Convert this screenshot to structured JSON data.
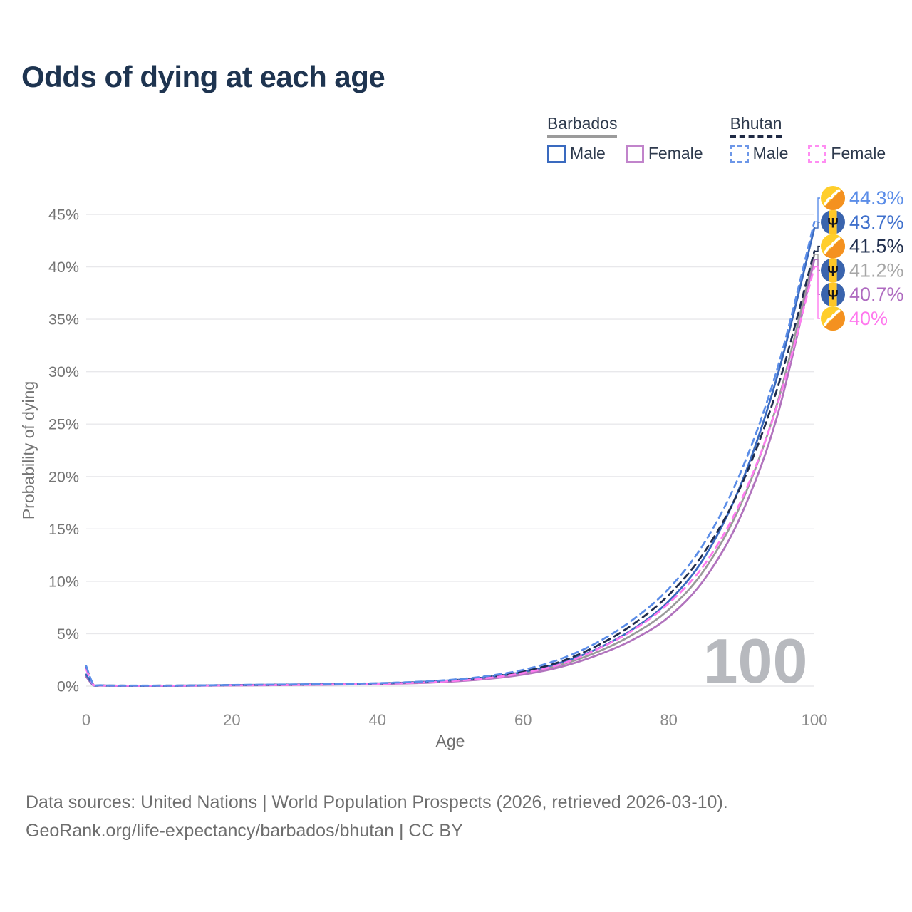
{
  "title": "Odds of dying at each age",
  "legend": {
    "groups": [
      {
        "label": "Barbados",
        "dashed": false,
        "underline_color": "#9B9B9B",
        "items": [
          {
            "label": "Male",
            "color": "#3A6ABF",
            "dashed": false
          },
          {
            "label": "Female",
            "color": "#C184CB",
            "dashed": false
          }
        ]
      },
      {
        "label": "Bhutan",
        "dashed": true,
        "underline_color": "#1F2A44",
        "items": [
          {
            "label": "Male",
            "color": "#6D97E8",
            "dashed": true
          },
          {
            "label": "Female",
            "color": "#FF8DF2",
            "dashed": true
          }
        ]
      }
    ]
  },
  "footer": {
    "line1": "Data sources: United Nations | World Population Prospects (2026, retrieved 2026-03-10).",
    "line2": "GeoRank.org/life-expectancy/barbados/bhutan | CC BY"
  },
  "chart_data": {
    "type": "line",
    "title": "Odds of dying at each age",
    "xlabel": "Age",
    "ylabel": "Probability of dying",
    "xlim": [
      0,
      100
    ],
    "ylim": [
      0,
      47
    ],
    "grid": true,
    "legend_position": "top-right",
    "x_ticks": [
      0,
      20,
      40,
      60,
      80,
      100
    ],
    "y_ticks_percent": [
      0,
      5,
      10,
      15,
      20,
      25,
      30,
      35,
      40,
      45
    ],
    "age_counter": "100",
    "x": [
      0,
      1,
      2,
      5,
      10,
      15,
      20,
      25,
      30,
      35,
      40,
      45,
      50,
      55,
      60,
      65,
      70,
      75,
      80,
      85,
      90,
      95,
      100
    ],
    "series": [
      {
        "name": "Bhutan Male",
        "country": "Bhutan",
        "sex": "Male",
        "color": "#5B8DE8",
        "label_color": "#5B8DE8",
        "dashed": true,
        "flag": "bhutan",
        "end_label": "44.3%",
        "end_value": 44.3,
        "values": [
          1.9,
          0.15,
          0.08,
          0.05,
          0.05,
          0.07,
          0.11,
          0.14,
          0.17,
          0.21,
          0.28,
          0.4,
          0.6,
          0.95,
          1.55,
          2.55,
          4.1,
          6.3,
          9.3,
          13.8,
          20.6,
          30.5,
          44.3
        ]
      },
      {
        "name": "Barbados Male",
        "country": "Barbados",
        "sex": "Male",
        "color": "#3A6ABF",
        "label_color": "#3F70CC",
        "dashed": false,
        "flag": "barbados",
        "end_label": "43.7%",
        "end_value": 43.7,
        "values": [
          1.1,
          0.09,
          0.06,
          0.04,
          0.04,
          0.06,
          0.1,
          0.13,
          0.16,
          0.2,
          0.26,
          0.37,
          0.55,
          0.85,
          1.35,
          2.2,
          3.5,
          5.4,
          8.1,
          12.4,
          19.4,
          29.8,
          43.7
        ]
      },
      {
        "name": "Bhutan",
        "country": "Bhutan",
        "sex": "Both",
        "color": "#1F2D4E",
        "label_color": "#22304F",
        "dashed": true,
        "flag": "bhutan",
        "end_label": "41.5%",
        "end_value": 41.5,
        "values": [
          1.75,
          0.13,
          0.07,
          0.045,
          0.045,
          0.06,
          0.095,
          0.12,
          0.15,
          0.19,
          0.25,
          0.36,
          0.54,
          0.85,
          1.4,
          2.3,
          3.8,
          5.85,
          8.7,
          12.9,
          19.2,
          28.6,
          41.5
        ]
      },
      {
        "name": "Barbados",
        "country": "Barbados",
        "sex": "Both",
        "color": "#9A9A9A",
        "label_color": "#A6A6A6",
        "dashed": false,
        "flag": "barbados",
        "end_label": "41.2%",
        "end_value": 41.2,
        "values": [
          1.0,
          0.08,
          0.05,
          0.035,
          0.035,
          0.05,
          0.085,
          0.11,
          0.14,
          0.18,
          0.23,
          0.33,
          0.5,
          0.78,
          1.25,
          2.0,
          3.2,
          4.9,
          7.3,
          11.2,
          17.5,
          27.2,
          41.2
        ]
      },
      {
        "name": "Barbados Female",
        "country": "Barbados",
        "sex": "Female",
        "color": "#B173BD",
        "label_color": "#AF6BC0",
        "dashed": false,
        "flag": "barbados",
        "end_label": "40.7%",
        "end_value": 40.7,
        "values": [
          0.9,
          0.07,
          0.045,
          0.03,
          0.03,
          0.04,
          0.07,
          0.09,
          0.115,
          0.15,
          0.2,
          0.28,
          0.43,
          0.68,
          1.1,
          1.8,
          2.9,
          4.4,
          6.6,
          10.3,
          16.4,
          26.0,
          40.7
        ]
      },
      {
        "name": "Bhutan Female",
        "country": "Bhutan",
        "sex": "Female",
        "color": "#FF7BF0",
        "label_color": "#FF77EE",
        "dashed": true,
        "flag": "bhutan",
        "end_label": "40%",
        "end_value": 40.0,
        "values": [
          1.6,
          0.11,
          0.06,
          0.04,
          0.04,
          0.05,
          0.08,
          0.1,
          0.13,
          0.17,
          0.22,
          0.32,
          0.48,
          0.76,
          1.25,
          2.05,
          3.45,
          5.3,
          7.9,
          11.7,
          17.8,
          27.0,
          40.0
        ]
      }
    ]
  }
}
